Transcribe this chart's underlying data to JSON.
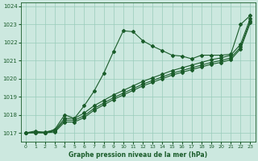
{
  "title": "Graphe pression niveau de la mer (hPa)",
  "bg_color": "#cce8df",
  "grid_color": "#99ccbb",
  "line_color": "#1a5c2a",
  "xlim": [
    -0.5,
    23.5
  ],
  "ylim": [
    1016.5,
    1024.2
  ],
  "yticks": [
    1017,
    1018,
    1019,
    1020,
    1021,
    1022,
    1023,
    1024
  ],
  "xticks": [
    0,
    1,
    2,
    3,
    4,
    5,
    6,
    7,
    8,
    9,
    10,
    11,
    12,
    13,
    14,
    15,
    16,
    17,
    18,
    19,
    20,
    21,
    22,
    23
  ],
  "series_peak": [
    1017.0,
    1017.1,
    1017.0,
    1017.2,
    1018.0,
    1017.8,
    1018.5,
    1019.3,
    1020.3,
    1021.5,
    1022.65,
    1022.6,
    1022.1,
    1021.8,
    1021.55,
    1021.3,
    1021.25,
    1021.1,
    1021.3,
    1021.3,
    1021.3,
    1021.35,
    1023.0,
    1023.5
  ],
  "series_linear1": [
    1017.0,
    1017.05,
    1017.05,
    1017.15,
    1017.8,
    1017.8,
    1018.1,
    1018.5,
    1018.8,
    1019.1,
    1019.35,
    1019.6,
    1019.85,
    1020.05,
    1020.25,
    1020.45,
    1020.6,
    1020.75,
    1020.9,
    1021.05,
    1021.15,
    1021.3,
    1021.9,
    1023.35
  ],
  "series_linear2": [
    1017.0,
    1017.02,
    1017.02,
    1017.1,
    1017.7,
    1017.7,
    1017.95,
    1018.35,
    1018.65,
    1018.95,
    1019.2,
    1019.45,
    1019.7,
    1019.9,
    1020.1,
    1020.3,
    1020.45,
    1020.6,
    1020.75,
    1020.9,
    1021.0,
    1021.15,
    1021.75,
    1023.2
  ],
  "series_linear3": [
    1017.0,
    1017.0,
    1017.0,
    1017.05,
    1017.6,
    1017.6,
    1017.85,
    1018.25,
    1018.55,
    1018.85,
    1019.1,
    1019.35,
    1019.6,
    1019.8,
    1020.0,
    1020.2,
    1020.35,
    1020.5,
    1020.65,
    1020.8,
    1020.9,
    1021.05,
    1021.65,
    1023.1
  ]
}
